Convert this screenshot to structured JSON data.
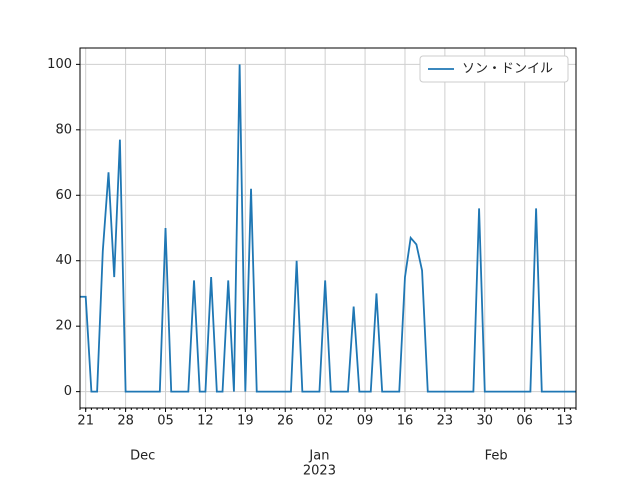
{
  "chart_data": {
    "type": "line",
    "x": [
      "2022-11-20",
      "2022-11-21",
      "2022-11-22",
      "2022-11-23",
      "2022-11-24",
      "2022-11-25",
      "2022-11-26",
      "2022-11-27",
      "2022-11-28",
      "2022-11-29",
      "2022-11-30",
      "2022-12-01",
      "2022-12-02",
      "2022-12-03",
      "2022-12-04",
      "2022-12-05",
      "2022-12-06",
      "2022-12-07",
      "2022-12-08",
      "2022-12-09",
      "2022-12-10",
      "2022-12-11",
      "2022-12-12",
      "2022-12-13",
      "2022-12-14",
      "2022-12-15",
      "2022-12-16",
      "2022-12-17",
      "2022-12-18",
      "2022-12-19",
      "2022-12-20",
      "2022-12-21",
      "2022-12-22",
      "2022-12-23",
      "2022-12-24",
      "2022-12-25",
      "2022-12-26",
      "2022-12-27",
      "2022-12-28",
      "2022-12-29",
      "2022-12-30",
      "2022-12-31",
      "2023-01-01",
      "2023-01-02",
      "2023-01-03",
      "2023-01-04",
      "2023-01-05",
      "2023-01-06",
      "2023-01-07",
      "2023-01-08",
      "2023-01-09",
      "2023-01-10",
      "2023-01-11",
      "2023-01-12",
      "2023-01-13",
      "2023-01-14",
      "2023-01-15",
      "2023-01-16",
      "2023-01-17",
      "2023-01-18",
      "2023-01-19",
      "2023-01-20",
      "2023-01-21",
      "2023-01-22",
      "2023-01-23",
      "2023-01-24",
      "2023-01-25",
      "2023-01-26",
      "2023-01-27",
      "2023-01-28",
      "2023-01-29",
      "2023-01-30",
      "2023-01-31",
      "2023-02-01",
      "2023-02-02",
      "2023-02-03",
      "2023-02-04",
      "2023-02-05",
      "2023-02-06",
      "2023-02-07",
      "2023-02-08",
      "2023-02-09",
      "2023-02-10",
      "2023-02-11",
      "2023-02-12",
      "2023-02-13",
      "2023-02-14",
      "2023-02-15"
    ],
    "series": [
      {
        "name": "ソン・ドンイル",
        "color": "#1f77b4",
        "values": [
          29,
          29,
          0,
          0,
          43,
          67,
          35,
          77,
          0,
          0,
          0,
          0,
          0,
          0,
          0,
          50,
          0,
          0,
          0,
          0,
          34,
          0,
          0,
          35,
          0,
          0,
          34,
          0,
          100,
          0,
          62,
          0,
          0,
          0,
          0,
          0,
          0,
          0,
          40,
          0,
          0,
          0,
          0,
          34,
          0,
          0,
          0,
          0,
          26,
          0,
          0,
          0,
          30,
          0,
          0,
          0,
          0,
          35,
          47,
          45,
          37,
          0,
          0,
          0,
          0,
          0,
          0,
          0,
          0,
          0,
          56,
          0,
          0,
          0,
          0,
          0,
          0,
          0,
          0,
          0,
          56,
          0,
          0,
          0,
          0,
          0,
          0,
          0
        ]
      }
    ],
    "xlim": [
      "2022-11-20",
      "2023-02-15"
    ],
    "xticks": [
      {
        "value": "2022-11-21",
        "label": "21"
      },
      {
        "value": "2022-11-28",
        "label": "28"
      },
      {
        "value": "2022-12-05",
        "label": "05"
      },
      {
        "value": "2022-12-12",
        "label": "12"
      },
      {
        "value": "2022-12-19",
        "label": "19"
      },
      {
        "value": "2022-12-26",
        "label": "26"
      },
      {
        "value": "2023-01-02",
        "label": "02"
      },
      {
        "value": "2023-01-09",
        "label": "09"
      },
      {
        "value": "2023-01-16",
        "label": "16"
      },
      {
        "value": "2023-01-23",
        "label": "23"
      },
      {
        "value": "2023-01-30",
        "label": "30"
      },
      {
        "value": "2023-02-06",
        "label": "06"
      },
      {
        "value": "2023-02-13",
        "label": "13"
      }
    ],
    "xmonth_ticks": [
      {
        "value": "2022-12-01",
        "label": "Dec"
      },
      {
        "value": "2023-01-01",
        "label": "Jan"
      },
      {
        "value": "2023-02-01",
        "label": "Feb"
      }
    ],
    "xyear_label": {
      "value": "2023-01-01",
      "label": "2023"
    },
    "ylim": [
      -5,
      105
    ],
    "yticks": [
      0,
      20,
      40,
      60,
      80,
      100
    ],
    "grid": true,
    "legend": "upper right"
  }
}
